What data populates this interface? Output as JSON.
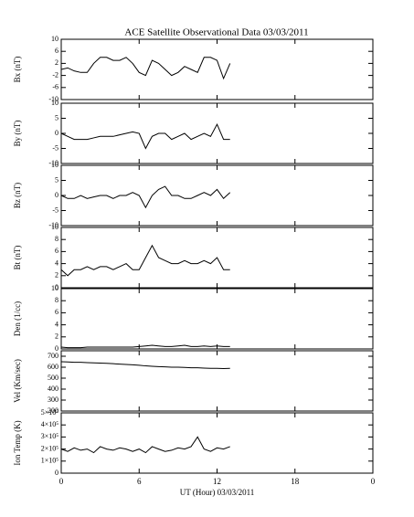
{
  "chart_data": [
    {
      "type": "line",
      "title": "ACE Satellite Observational Data  03/03/2011",
      "ylabel": "Bx (nT)",
      "color": "#000000",
      "ylim": [
        -10,
        10
      ],
      "yticks": [
        -10,
        -6,
        -2,
        2,
        6,
        10
      ],
      "x": [
        0,
        0.5,
        1,
        1.5,
        2,
        2.5,
        3,
        3.5,
        4,
        4.5,
        5,
        5.5,
        6,
        6.5,
        7,
        7.5,
        8,
        8.5,
        9,
        9.5,
        10,
        10.5,
        11,
        11.5,
        12,
        12.5,
        13
      ],
      "values": [
        0,
        0.5,
        -0.5,
        -1,
        -1,
        2,
        4,
        4,
        3,
        3,
        4,
        2,
        -1,
        -2,
        3,
        2,
        0,
        -2,
        -1,
        1,
        0,
        -1,
        4,
        4,
        3,
        -3,
        2
      ]
    },
    {
      "type": "line",
      "ylabel": "By (nT)",
      "color": "#000000",
      "ylim": [
        -10,
        10
      ],
      "yticks": [
        -10,
        -5,
        0,
        5,
        10
      ],
      "x": [
        0,
        0.5,
        1,
        1.5,
        2,
        2.5,
        3,
        3.5,
        4,
        4.5,
        5,
        5.5,
        6,
        6.5,
        7,
        7.5,
        8,
        8.5,
        9,
        9.5,
        10,
        10.5,
        11,
        11.5,
        12,
        12.5,
        13
      ],
      "values": [
        0,
        -1,
        -2,
        -2,
        -2,
        -1.5,
        -1,
        -1,
        -1,
        -0.5,
        0,
        0.5,
        0,
        -5,
        -1,
        0,
        0,
        -2,
        -1,
        0,
        -2,
        -1,
        0,
        -1,
        3,
        -2,
        -2
      ]
    },
    {
      "type": "line",
      "ylabel": "Bz (nT)",
      "color": "#000000",
      "ylim": [
        -10,
        10
      ],
      "yticks": [
        -10,
        -5,
        0,
        5,
        10
      ],
      "x": [
        0,
        0.5,
        1,
        1.5,
        2,
        2.5,
        3,
        3.5,
        4,
        4.5,
        5,
        5.5,
        6,
        6.5,
        7,
        7.5,
        8,
        8.5,
        9,
        9.5,
        10,
        10.5,
        11,
        11.5,
        12,
        12.5,
        13
      ],
      "values": [
        0,
        -1,
        -1,
        0,
        -1,
        -0.5,
        0,
        0,
        -1,
        0,
        0,
        1,
        0,
        -4,
        0,
        2,
        3,
        0,
        0,
        -1,
        -1,
        0,
        1,
        0,
        2,
        -1,
        1
      ]
    },
    {
      "type": "line",
      "ylabel": "Bt (nT)",
      "color": "#000000",
      "ylim": [
        0,
        10
      ],
      "yticks": [
        0,
        2,
        4,
        6,
        8,
        10
      ],
      "x": [
        0,
        0.5,
        1,
        1.5,
        2,
        2.5,
        3,
        3.5,
        4,
        4.5,
        5,
        5.5,
        6,
        6.5,
        7,
        7.5,
        8,
        8.5,
        9,
        9.5,
        10,
        10.5,
        11,
        11.5,
        12,
        12.5,
        13
      ],
      "values": [
        3,
        2,
        3,
        3,
        3.5,
        3,
        3.5,
        3.5,
        3,
        3.5,
        4,
        3,
        3,
        5,
        7,
        5,
        4.5,
        4,
        4,
        4.5,
        4,
        4,
        4.5,
        4,
        5,
        3,
        3
      ]
    },
    {
      "type": "line",
      "ylabel": "Den (1/cc)",
      "color": "#000000",
      "ylim": [
        0,
        10
      ],
      "yticks": [
        0,
        2,
        4,
        6,
        8,
        10
      ],
      "x": [
        0,
        0.5,
        1,
        1.5,
        2,
        2.5,
        3,
        3.5,
        4,
        4.5,
        5,
        5.5,
        6,
        6.5,
        7,
        7.5,
        8,
        8.5,
        9,
        9.5,
        10,
        10.5,
        11,
        11.5,
        12,
        12.5,
        13
      ],
      "values": [
        0.3,
        0.2,
        0.2,
        0.2,
        0.3,
        0.3,
        0.3,
        0.3,
        0.3,
        0.3,
        0.3,
        0.3,
        0.4,
        0.5,
        0.6,
        0.5,
        0.4,
        0.4,
        0.5,
        0.6,
        0.4,
        0.4,
        0.5,
        0.4,
        0.5,
        0.4,
        0.4
      ]
    },
    {
      "type": "line",
      "ylabel": "Vel (Km/sec)",
      "color": "#000000",
      "ylim": [
        200,
        750
      ],
      "yticks": [
        200,
        300,
        400,
        500,
        600,
        700
      ],
      "x": [
        0,
        0.5,
        1,
        1.5,
        2,
        2.5,
        3,
        3.5,
        4,
        4.5,
        5,
        5.5,
        6,
        6.5,
        7,
        7.5,
        8,
        8.5,
        9,
        9.5,
        10,
        10.5,
        11,
        11.5,
        12,
        12.5,
        13
      ],
      "values": [
        650,
        648,
        645,
        645,
        642,
        640,
        638,
        635,
        632,
        628,
        625,
        622,
        618,
        612,
        608,
        605,
        603,
        600,
        600,
        598,
        595,
        595,
        592,
        590,
        590,
        588,
        590
      ]
    },
    {
      "type": "line",
      "ylabel": "Ion Temp (K)",
      "color": "#000000",
      "xlabel": "UT (Hour)  03/03/2011",
      "xlim": [
        0,
        24
      ],
      "xticks": [
        0,
        6,
        12,
        18,
        {
          "value": 24,
          "label": "0"
        }
      ],
      "ylim": [
        0,
        500000
      ],
      "yticks": [
        0,
        {
          "value": 100000,
          "label": "1×10⁵"
        },
        {
          "value": 200000,
          "label": "2×10⁵"
        },
        {
          "value": 300000,
          "label": "3×10⁵"
        },
        {
          "value": 400000,
          "label": "4×10⁵"
        },
        {
          "value": 500000,
          "label": "5×10⁵"
        }
      ],
      "x": [
        0,
        0.5,
        1,
        1.5,
        2,
        2.5,
        3,
        3.5,
        4,
        4.5,
        5,
        5.5,
        6,
        6.5,
        7,
        7.5,
        8,
        8.5,
        9,
        9.5,
        10,
        10.5,
        11,
        11.5,
        12,
        12.5,
        13
      ],
      "values": [
        200000,
        180000,
        210000,
        190000,
        200000,
        170000,
        220000,
        200000,
        190000,
        210000,
        200000,
        180000,
        200000,
        170000,
        220000,
        200000,
        180000,
        190000,
        210000,
        200000,
        220000,
        300000,
        200000,
        180000,
        210000,
        200000,
        220000
      ]
    }
  ]
}
